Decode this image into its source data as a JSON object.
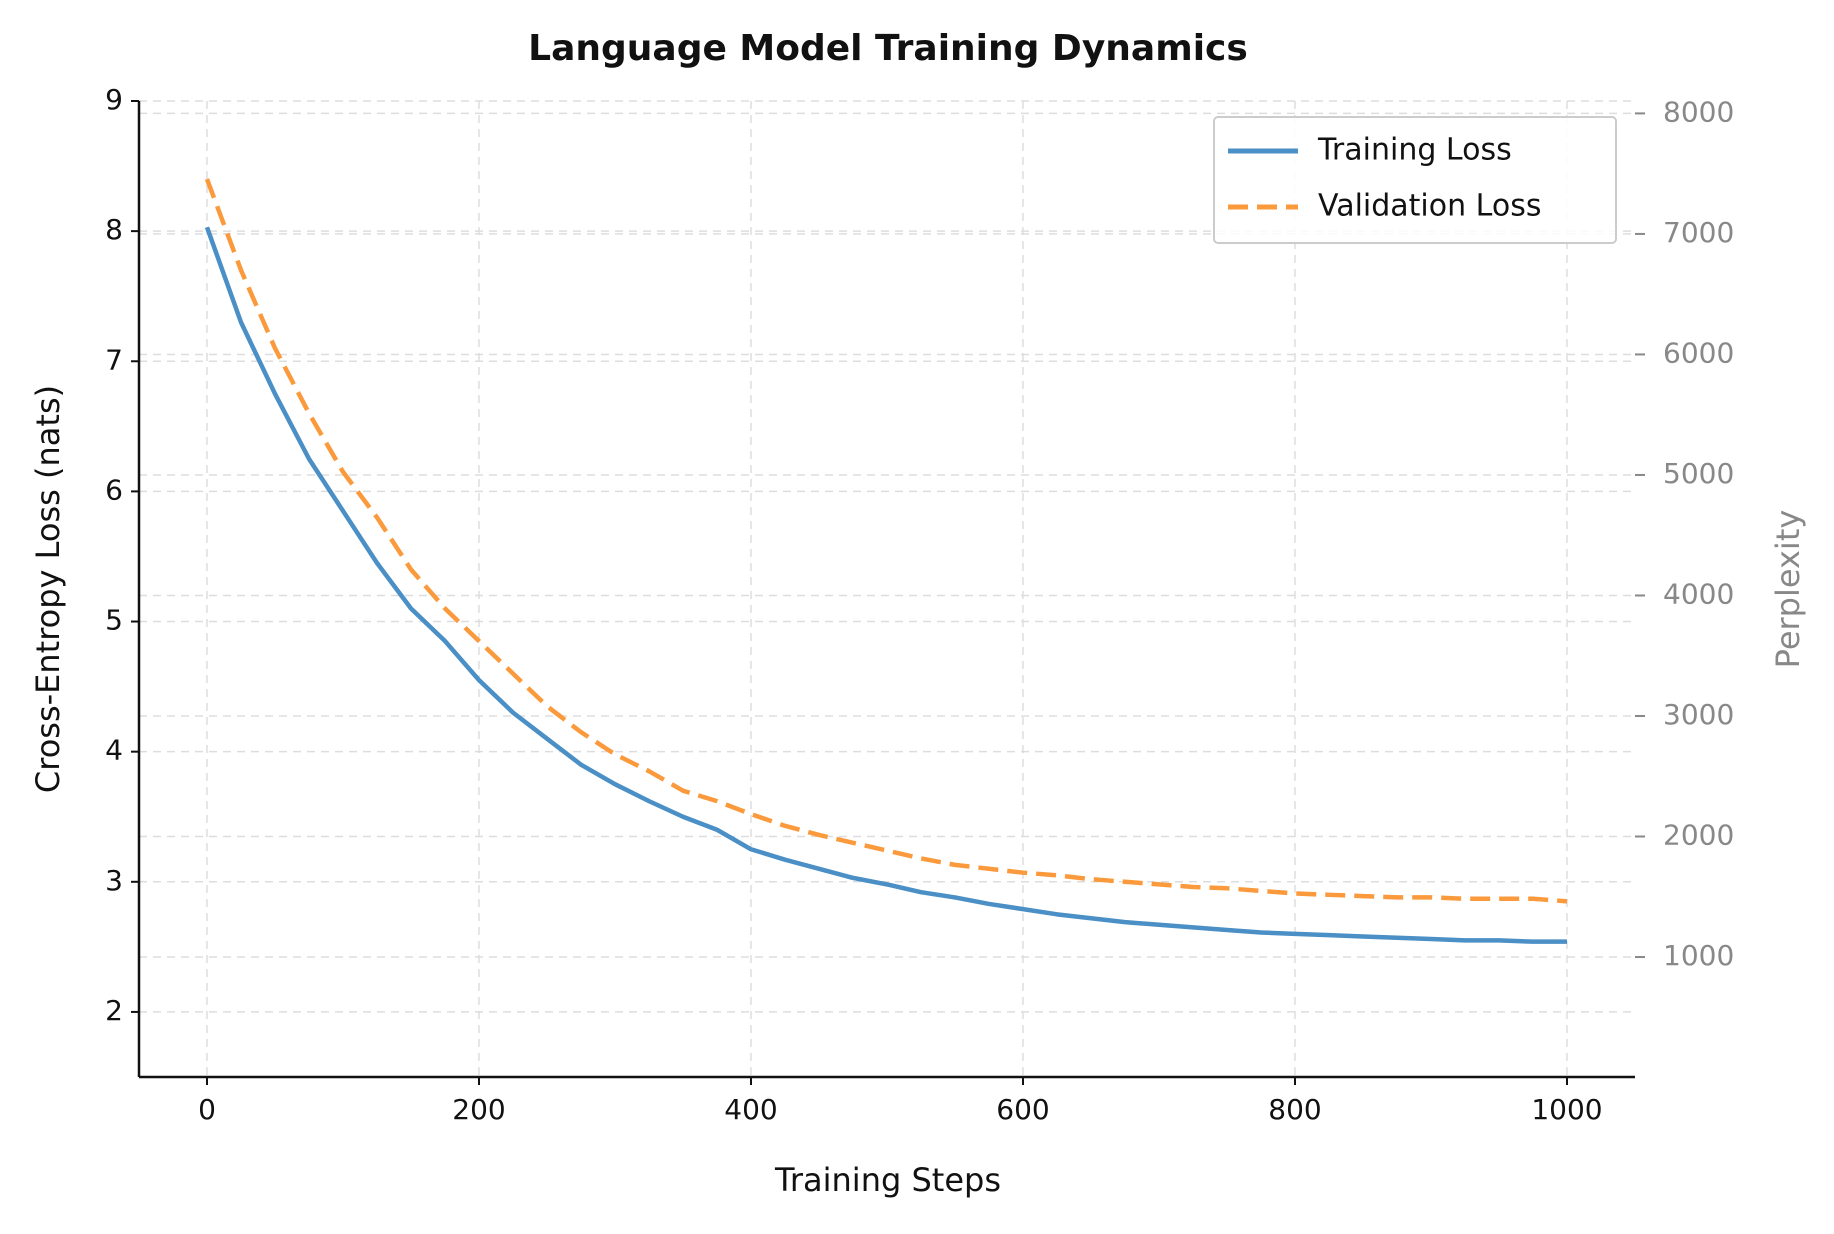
{
  "chart_data": {
    "type": "line",
    "title": "Language Model Training Dynamics",
    "xlabel": "Training Steps",
    "ylabel": "Cross-Entropy Loss (nats)",
    "y2label": "Perplexity",
    "x": [
      0,
      25,
      50,
      75,
      100,
      125,
      150,
      175,
      200,
      225,
      250,
      275,
      300,
      325,
      350,
      375,
      400,
      425,
      450,
      475,
      500,
      525,
      550,
      575,
      600,
      625,
      650,
      675,
      700,
      725,
      750,
      775,
      800,
      825,
      850,
      875,
      900,
      925,
      950,
      975,
      1000
    ],
    "series": [
      {
        "name": "Training Loss",
        "color": "#4a8fc5",
        "linestyle": "solid",
        "values": [
          8.03,
          7.3,
          6.75,
          6.25,
          5.85,
          5.45,
          5.1,
          4.85,
          4.55,
          4.3,
          4.1,
          3.9,
          3.75,
          3.62,
          3.5,
          3.4,
          3.25,
          3.17,
          3.1,
          3.03,
          2.98,
          2.92,
          2.88,
          2.83,
          2.79,
          2.75,
          2.72,
          2.69,
          2.67,
          2.65,
          2.63,
          2.61,
          2.6,
          2.59,
          2.58,
          2.57,
          2.56,
          2.55,
          2.55,
          2.54,
          2.54
        ]
      },
      {
        "name": "Validation Loss",
        "color": "#fb9a3c",
        "linestyle": "dashed",
        "values": [
          8.4,
          7.7,
          7.1,
          6.6,
          6.15,
          5.8,
          5.4,
          5.1,
          4.85,
          4.6,
          4.35,
          4.15,
          3.98,
          3.85,
          3.7,
          3.62,
          3.52,
          3.43,
          3.36,
          3.3,
          3.24,
          3.18,
          3.13,
          3.1,
          3.07,
          3.05,
          3.02,
          3.0,
          2.98,
          2.96,
          2.95,
          2.93,
          2.91,
          2.9,
          2.89,
          2.88,
          2.88,
          2.87,
          2.87,
          2.87,
          2.85
        ]
      }
    ],
    "xlim": [
      -50,
      1050
    ],
    "xticks": [
      0,
      200,
      400,
      600,
      800,
      1000
    ],
    "ylim": [
      1.5,
      9
    ],
    "yticks": [
      2,
      3,
      4,
      5,
      6,
      7,
      8,
      9
    ],
    "y2lim": [
      4.5,
      8103
    ],
    "y2ticks": [
      1000,
      2000,
      3000,
      4000,
      5000,
      6000,
      7000,
      8000
    ],
    "grid": true,
    "legend": "upper right"
  }
}
